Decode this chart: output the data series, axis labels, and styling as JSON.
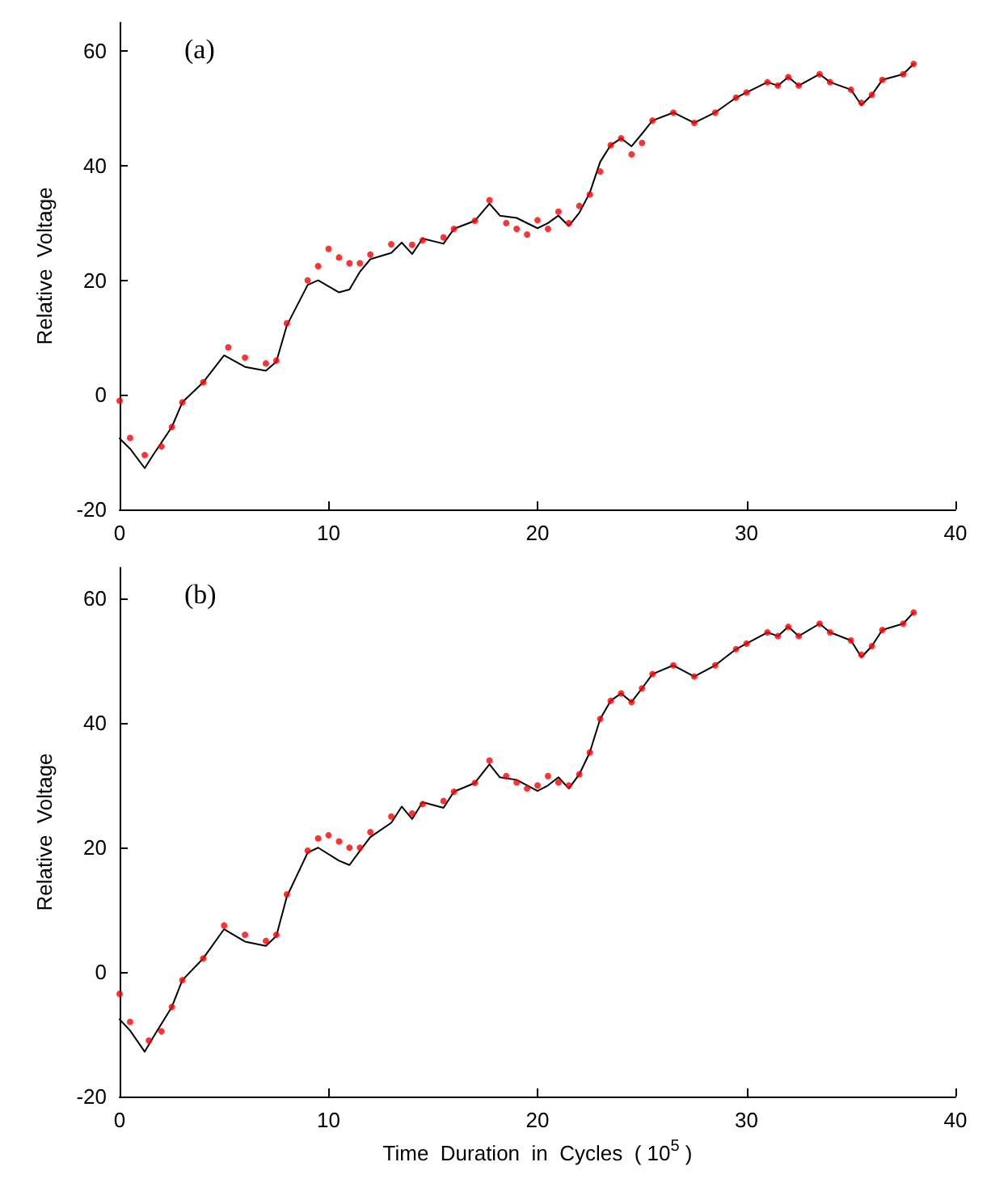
{
  "chart_data": [
    {
      "type": "line",
      "ylabel": "Relative  Voltage",
      "annotations": [
        "(a)"
      ],
      "xlim": [
        0,
        40
      ],
      "xticks": [
        0,
        10,
        20,
        30,
        40
      ],
      "ylim": [
        -20,
        65
      ],
      "yticks": [
        -20,
        0,
        20,
        40,
        60
      ],
      "grid": false,
      "series": [
        {
          "color": "#000000",
          "marker": "none",
          "line_style": "solid",
          "x": [
            0,
            0.5,
            1.2,
            1.6,
            2.5,
            3,
            4,
            5,
            6,
            7,
            7.5,
            8,
            9,
            9.5,
            10.5,
            11,
            11.5,
            12,
            13,
            13.5,
            14,
            14.5,
            15.5,
            16,
            17,
            17.7,
            18.2,
            19,
            20,
            20.5,
            21,
            21.5,
            22,
            22.5,
            23,
            23.5,
            24,
            24.5,
            25,
            25.5,
            26.5,
            27.5,
            28.5,
            29.5,
            30,
            31,
            31.5,
            32,
            32.5,
            33.5,
            34,
            35,
            35.5,
            36,
            36.5,
            37.5,
            38
          ],
          "values": [
            -7.6,
            -9.4,
            -12.8,
            -10.5,
            -5.6,
            -1.3,
            2.2,
            6.9,
            4.9,
            4.2,
            5.8,
            12.1,
            19.2,
            20,
            17.9,
            18.4,
            21.5,
            23.7,
            24.8,
            26.6,
            24.6,
            27.3,
            26.4,
            29,
            30.4,
            33.4,
            31.3,
            30.9,
            29.1,
            30,
            31.3,
            29.5,
            31.8,
            35.3,
            40.7,
            43.6,
            44.8,
            43.4,
            45.6,
            47.9,
            49.3,
            47.5,
            49.3,
            51.9,
            52.8,
            54.6,
            54,
            55.5,
            54,
            56,
            54.6,
            53.3,
            50.6,
            52.4,
            55,
            56,
            57.8
          ]
        },
        {
          "type": "scatter",
          "color": "#ff0000",
          "marker": "circle",
          "x": [
            0,
            0.5,
            1.2,
            2,
            2.5,
            3,
            4,
            5.2,
            6,
            7,
            7.5,
            8,
            9,
            9.5,
            10,
            10.5,
            11,
            11.5,
            12,
            13,
            14,
            14.5,
            15.5,
            16,
            17,
            17.7,
            18.5,
            19,
            19.5,
            20,
            20.5,
            21,
            21.5,
            22,
            22.5,
            23,
            23.5,
            24,
            24.5,
            25,
            25.5,
            26.5,
            27.5,
            28.5,
            29.5,
            30,
            31,
            31.5,
            32,
            32.5,
            33.5,
            34,
            35,
            35.5,
            36,
            36.5,
            37.5,
            38
          ],
          "values": [
            -1,
            -7.5,
            -10.5,
            -9,
            -5.6,
            -1.3,
            2.2,
            8.3,
            6.5,
            5.5,
            6,
            12.5,
            20,
            22.5,
            25.5,
            24,
            23,
            23,
            24.5,
            26.3,
            26.2,
            27,
            27.5,
            29,
            30.4,
            34,
            30,
            29,
            28,
            30.5,
            29,
            32,
            30,
            33,
            35,
            39,
            43.6,
            44.8,
            42,
            44,
            47.9,
            49.3,
            47.5,
            49.3,
            51.9,
            52.8,
            54.6,
            54,
            55.5,
            54,
            56,
            54.6,
            53.3,
            51,
            52.4,
            55,
            56,
            57.8
          ]
        }
      ]
    },
    {
      "type": "line",
      "ylabel": "Relative  Voltage",
      "xlabel": "Time  Duration  in  Cycles  ( 10$^{5}$ )",
      "annotations": [
        "(b)"
      ],
      "xlim": [
        0,
        40
      ],
      "xticks": [
        0,
        10,
        20,
        30,
        40
      ],
      "ylim": [
        -20,
        65
      ],
      "yticks": [
        -20,
        0,
        20,
        40,
        60
      ],
      "grid": false,
      "series": [
        {
          "color": "#000000",
          "marker": "none",
          "line_style": "solid",
          "x": [
            0,
            0.5,
            1.2,
            1.6,
            2.5,
            3,
            4,
            5,
            6,
            7,
            7.5,
            8,
            9,
            9.5,
            10.5,
            11,
            11.5,
            12,
            13,
            13.5,
            14,
            14.5,
            15.5,
            16,
            17,
            17.7,
            18.2,
            19,
            20,
            20.5,
            21,
            21.5,
            22,
            22.5,
            23,
            23.5,
            24,
            24.5,
            25,
            25.5,
            26.5,
            27.5,
            28.5,
            29.5,
            30,
            31,
            31.5,
            32,
            32.5,
            33.5,
            34,
            35,
            35.5,
            36,
            36.5,
            37.5,
            38
          ],
          "values": [
            -7.6,
            -9.4,
            -12.8,
            -10.5,
            -5.6,
            -1.3,
            2.2,
            6.9,
            4.9,
            4.2,
            5.8,
            12.1,
            19.2,
            20,
            17.9,
            17.2,
            19.5,
            21.7,
            24,
            26.6,
            24.6,
            27.3,
            26.4,
            29,
            30.4,
            33.4,
            31.3,
            30.9,
            29.1,
            30,
            31.3,
            29.5,
            31.8,
            35.3,
            40.7,
            43.6,
            44.8,
            43.4,
            45.6,
            47.9,
            49.3,
            47.5,
            49.3,
            51.9,
            52.8,
            54.6,
            54,
            55.5,
            54,
            56,
            54.6,
            53.3,
            50.6,
            52.4,
            55,
            56,
            57.8
          ]
        },
        {
          "type": "scatter",
          "color": "#ff0000",
          "marker": "circle",
          "x": [
            0,
            0.5,
            1.4,
            2,
            2.5,
            3,
            4,
            5,
            6,
            7,
            7.5,
            8,
            9,
            9.5,
            10,
            10.5,
            11,
            11.5,
            12,
            13,
            14,
            14.5,
            15.5,
            16,
            17,
            17.7,
            18.5,
            19,
            19.5,
            20,
            20.5,
            21,
            21.5,
            22,
            22.5,
            23,
            23.5,
            24,
            24.5,
            25,
            25.5,
            26.5,
            27.5,
            28.5,
            29.5,
            30,
            31,
            31.5,
            32,
            32.5,
            33.5,
            34,
            35,
            35.5,
            36,
            36.5,
            37.5,
            38
          ],
          "values": [
            -3.5,
            -8,
            -11,
            -9.5,
            -5.6,
            -1.3,
            2.2,
            7.5,
            6,
            5,
            6,
            12.5,
            19.5,
            21.5,
            22,
            21,
            20,
            20,
            22.5,
            25,
            25.5,
            27,
            27.5,
            29,
            30.4,
            34,
            31.5,
            30.5,
            29.5,
            30,
            31.5,
            30.5,
            30,
            31.8,
            35.3,
            40.7,
            43.6,
            44.8,
            43.4,
            45.6,
            47.9,
            49.3,
            47.5,
            49.3,
            51.9,
            52.8,
            54.6,
            54,
            55.5,
            54,
            56,
            54.6,
            53.3,
            51,
            52.4,
            55,
            56,
            57.8
          ]
        }
      ]
    }
  ]
}
